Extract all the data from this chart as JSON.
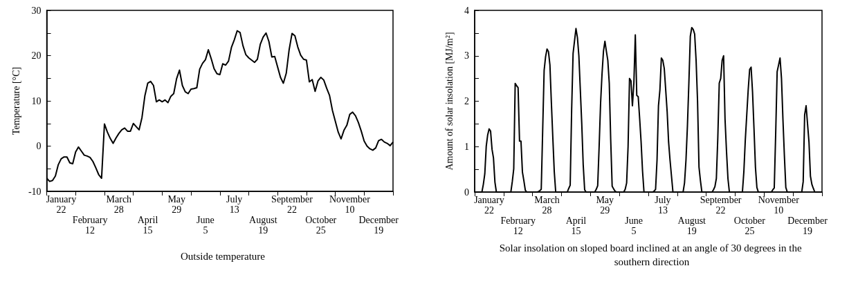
{
  "chart_data": [
    {
      "type": "line",
      "xlabel": "Outside temperature",
      "ylabel": "Temperature [°C]",
      "ylim": [
        -10,
        30
      ],
      "categories": [
        null,
        null,
        null,
        null,
        null,
        "January\n22",
        null,
        null,
        null,
        null,
        null,
        null,
        null,
        null,
        null,
        "February\n12",
        null,
        null,
        null,
        null,
        null,
        null,
        null,
        null,
        null,
        "March\n28",
        null,
        null,
        null,
        null,
        null,
        null,
        null,
        null,
        null,
        "April\n15",
        null,
        null,
        null,
        null,
        null,
        null,
        null,
        null,
        null,
        "May\n29",
        null,
        null,
        null,
        null,
        null,
        null,
        null,
        null,
        null,
        "June\n5",
        null,
        null,
        null,
        null,
        null,
        null,
        null,
        null,
        null,
        "July\n13",
        null,
        null,
        null,
        null,
        null,
        null,
        null,
        null,
        null,
        "August\n19",
        null,
        null,
        null,
        null,
        null,
        null,
        null,
        null,
        null,
        "September\n22",
        null,
        null,
        null,
        null,
        null,
        null,
        null,
        null,
        null,
        "October\n25",
        null,
        null,
        null,
        null,
        null,
        null,
        null,
        null,
        null,
        "November\n10",
        null,
        null,
        null,
        null,
        null,
        null,
        null,
        null,
        null,
        "December\n19",
        null,
        null,
        null,
        null,
        null
      ],
      "yticks": [
        -10,
        {
          "value": -5,
          "label": null
        },
        0,
        {
          "value": 5,
          "label": null
        },
        10,
        {
          "value": 15,
          "label": null
        },
        20,
        {
          "value": 25,
          "label": null
        },
        30
      ],
      "grid": false,
      "line_style": "solid",
      "marker": "none",
      "series": [
        {
          "color": "#000000",
          "values": [
            -7.1,
            -7.8,
            -7.6,
            -6.6,
            -4.1,
            -2.8,
            -2.4,
            -2.4,
            -3.7,
            -3.9,
            -1.3,
            -0.2,
            -1.1,
            -2.0,
            -2.2,
            -2.5,
            -3.4,
            -4.8,
            -6.3,
            -7.1,
            4.9,
            3.1,
            1.7,
            0.6,
            1.8,
            2.8,
            3.6,
            4.0,
            3.3,
            3.3,
            5.0,
            4.3,
            3.6,
            6.3,
            11.1,
            13.9,
            14.3,
            13.4,
            9.8,
            10.2,
            9.8,
            10.2,
            9.6,
            11.0,
            11.6,
            14.9,
            16.8,
            13.4,
            12.0,
            11.6,
            12.6,
            12.7,
            12.9,
            17.0,
            18.3,
            19.1,
            21.3,
            19.3,
            17.1,
            16.0,
            15.8,
            18.2,
            17.9,
            18.8,
            21.8,
            23.5,
            25.5,
            25.1,
            22.2,
            20.2,
            19.5,
            19.0,
            18.5,
            19.2,
            22.5,
            24.1,
            25.0,
            23.1,
            19.7,
            19.8,
            17.5,
            15.2,
            13.9,
            16.1,
            21.3,
            24.9,
            24.4,
            21.9,
            20.1,
            19.2,
            19.0,
            14.2,
            14.7,
            12.1,
            14.4,
            15.2,
            14.6,
            12.8,
            11.2,
            7.9,
            5.5,
            3.1,
            1.6,
            3.5,
            4.6,
            7.0,
            7.5,
            6.7,
            5.2,
            3.3,
            1.1,
            0.0,
            -0.6,
            -0.9,
            -0.4,
            1.2,
            1.5,
            0.9,
            0.6,
            0.1,
            0.9
          ]
        }
      ]
    },
    {
      "type": "line",
      "xlabel": "Solar insolation on sloped board inclined at an angle of 30 degrees in the southern direction",
      "ylabel": "Amount of solar insolation [MJ/m²]",
      "ylim": [
        0,
        4
      ],
      "categories": [
        null,
        null,
        null,
        null,
        null,
        null,
        null,
        null,
        null,
        null,
        "January\n22",
        null,
        null,
        null,
        null,
        null,
        null,
        null,
        null,
        null,
        null,
        null,
        null,
        null,
        null,
        null,
        null,
        null,
        null,
        null,
        "February\n12",
        null,
        null,
        null,
        null,
        null,
        null,
        null,
        null,
        null,
        null,
        null,
        null,
        null,
        null,
        null,
        null,
        null,
        null,
        null,
        "March\n28",
        null,
        null,
        null,
        null,
        null,
        null,
        null,
        null,
        null,
        null,
        null,
        null,
        null,
        null,
        null,
        null,
        null,
        null,
        null,
        "April\n15",
        null,
        null,
        null,
        null,
        null,
        null,
        null,
        null,
        null,
        null,
        null,
        null,
        null,
        null,
        null,
        null,
        null,
        null,
        null,
        "May\n29",
        null,
        null,
        null,
        null,
        null,
        null,
        null,
        null,
        null,
        null,
        null,
        null,
        null,
        null,
        null,
        null,
        null,
        null,
        null,
        "June\n5",
        null,
        null,
        null,
        null,
        null,
        null,
        null,
        null,
        null,
        null,
        null,
        null,
        null,
        null,
        null,
        null,
        null,
        null,
        null,
        "July\n13",
        null,
        null,
        null,
        null,
        null,
        null,
        null,
        null,
        null,
        null,
        null,
        null,
        null,
        null,
        null,
        null,
        null,
        null,
        null,
        "August\n19",
        null,
        null,
        null,
        null,
        null,
        null,
        null,
        null,
        null,
        null,
        null,
        null,
        null,
        null,
        null,
        null,
        null,
        null,
        null,
        "September\n22",
        null,
        null,
        null,
        null,
        null,
        null,
        null,
        null,
        null,
        null,
        null,
        null,
        null,
        null,
        null,
        null,
        null,
        null,
        null,
        "October\n25",
        null,
        null,
        null,
        null,
        null,
        null,
        null,
        null,
        null,
        null,
        null,
        null,
        null,
        null,
        null,
        null,
        null,
        null,
        null,
        "November\n10",
        null,
        null,
        null,
        null,
        null,
        null,
        null,
        null,
        null,
        null,
        null,
        null,
        null,
        null,
        null,
        null,
        null,
        null,
        null,
        "December\n19",
        null,
        null,
        null,
        null,
        null,
        null,
        null,
        null,
        null,
        null
      ],
      "yticks": [
        0,
        {
          "value": 0.5,
          "label": null
        },
        1,
        {
          "value": 1.5,
          "label": null
        },
        2,
        {
          "value": 2.5,
          "label": null
        },
        3,
        {
          "value": 3.5,
          "label": null
        },
        4
      ],
      "grid": false,
      "line_style": "solid",
      "marker": "none",
      "series": [
        {
          "color": "#000000",
          "values": [
            0,
            0,
            0,
            0,
            0,
            0,
            0.17,
            0.4,
            1.01,
            1.26,
            1.39,
            1.34,
            0.94,
            0.75,
            0.22,
            0,
            0,
            0,
            0,
            0,
            0,
            0,
            0,
            0,
            0,
            0,
            0.23,
            0.51,
            2.39,
            2.34,
            2.3,
            1.12,
            1.12,
            0.44,
            0.25,
            0.04,
            0,
            0,
            0,
            0,
            0,
            0,
            0,
            0,
            0.01,
            0.03,
            0.06,
            1.37,
            2.68,
            2.98,
            3.15,
            3.09,
            2.8,
            1.97,
            1.2,
            0.45,
            0,
            0,
            0,
            0,
            0,
            0,
            0,
            0,
            0,
            0.08,
            0.15,
            1.8,
            3.05,
            3.33,
            3.6,
            3.4,
            3.0,
            2.25,
            1.5,
            0.6,
            0.05,
            0,
            0,
            0,
            0,
            0,
            0,
            0,
            0.06,
            0.14,
            1.0,
            1.95,
            2.6,
            3.1,
            3.32,
            3.1,
            2.9,
            2.4,
            1.15,
            0.13,
            0.07,
            0.02,
            0,
            0,
            0,
            0,
            0,
            0,
            0.06,
            0.2,
            1.0,
            2.5,
            2.45,
            1.9,
            2.4,
            3.46,
            2.13,
            2.1,
            1.62,
            1.1,
            0.46,
            0,
            0,
            0,
            0,
            0,
            0,
            0,
            0.02,
            0.06,
            0.7,
            1.9,
            2.25,
            2.95,
            2.9,
            2.72,
            2.25,
            1.77,
            1.1,
            0.7,
            0.35,
            0,
            0,
            0,
            0,
            0,
            0,
            0,
            0,
            0.2,
            0.7,
            1.45,
            2.4,
            3.43,
            3.62,
            3.58,
            3.48,
            2.9,
            2.0,
            0.55,
            0.25,
            0,
            0,
            0,
            0,
            0,
            0,
            0,
            0,
            0.05,
            0.12,
            0.3,
            1.2,
            2.4,
            2.5,
            2.9,
            3.0,
            1.6,
            0.9,
            0.3,
            0,
            0,
            0,
            0,
            0,
            0,
            0,
            0,
            0,
            0,
            0.45,
            1.15,
            1.7,
            2.25,
            2.7,
            2.75,
            2.2,
            1.4,
            0.55,
            0.1,
            0,
            0,
            0,
            0,
            0,
            0,
            0,
            0,
            0,
            0,
            0.05,
            0.09,
            1.3,
            2.65,
            2.8,
            2.95,
            2.5,
            1.6,
            0.8,
            0.1,
            0,
            0,
            0,
            0,
            0,
            0,
            0,
            0,
            0,
            0,
            0,
            0.23,
            1.7,
            1.9,
            1.5,
            1.1,
            0.35,
            0.17,
            0.08,
            0,
            0,
            0,
            0,
            0,
            0
          ]
        }
      ]
    }
  ]
}
